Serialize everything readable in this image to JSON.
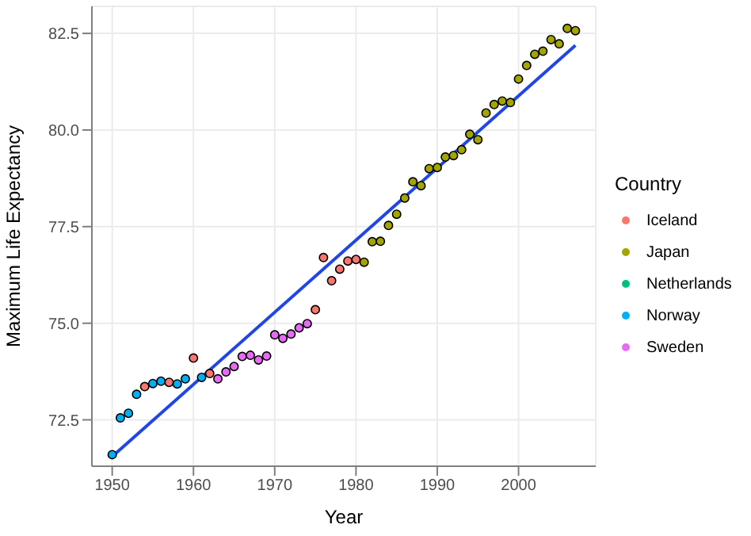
{
  "chart_data": {
    "type": "scatter",
    "xlabel": "Year",
    "ylabel": "Maximum Life Expectancy",
    "legend_title": "Country",
    "xlim": [
      1947.5,
      2009.5
    ],
    "ylim": [
      71.3,
      83.2
    ],
    "xticks": [
      1950,
      1960,
      1970,
      1980,
      1990,
      2000
    ],
    "yticks": [
      72.5,
      {
        "value": 75,
        "label": "75.0"
      },
      77.5,
      {
        "value": 80,
        "label": "80.0"
      },
      82.5
    ],
    "grid": true,
    "legend": "right",
    "marker": "circle",
    "series": [
      {
        "name": "Iceland",
        "color": "#f8766d",
        "x": [
          1954,
          1957,
          1960,
          1962,
          1975,
          1976,
          1977,
          1978,
          1979,
          1980
        ],
        "values": [
          73.36,
          73.47,
          74.1,
          73.7,
          75.35,
          76.7,
          76.1,
          76.4,
          76.61,
          76.65
        ]
      },
      {
        "name": "Japan",
        "color": "#a3a500",
        "x": [
          1981,
          1982,
          1983,
          1984,
          1985,
          1986,
          1987,
          1988,
          1989,
          1990,
          1991,
          1992,
          1993,
          1994,
          1995,
          1996,
          1997,
          1998,
          1999,
          2000,
          2001,
          2002,
          2003,
          2004,
          2005,
          2006,
          2007
        ],
        "values": [
          76.58,
          77.11,
          77.12,
          77.53,
          77.82,
          78.24,
          78.66,
          78.56,
          79.0,
          79.03,
          79.3,
          79.34,
          79.49,
          79.89,
          79.75,
          80.44,
          80.66,
          80.75,
          80.71,
          81.32,
          81.67,
          81.96,
          82.04,
          82.34,
          82.23,
          82.63,
          82.57
        ]
      },
      {
        "name": "Netherlands",
        "color": "#00bf7d"
      },
      {
        "name": "Norway",
        "color": "#00b0f6",
        "x": [
          1950,
          1951,
          1952,
          1953,
          1955,
          1956,
          1958,
          1959,
          1961
        ],
        "values": [
          71.6,
          72.55,
          72.67,
          73.16,
          73.44,
          73.5,
          73.43,
          73.56,
          73.6
        ]
      },
      {
        "name": "Sweden",
        "color": "#e76bf3",
        "x": [
          1963,
          1964,
          1965,
          1966,
          1967,
          1968,
          1969,
          1970,
          1971,
          1972,
          1973,
          1974
        ],
        "values": [
          73.56,
          73.74,
          73.88,
          74.14,
          74.17,
          74.05,
          74.15,
          74.7,
          74.61,
          74.72,
          74.88,
          74.99
        ]
      },
      {
        "type": "line",
        "color": "#2046e6",
        "marker": "none",
        "x": [
          1950,
          2007
        ],
        "values": [
          71.55,
          82.19
        ]
      }
    ]
  }
}
